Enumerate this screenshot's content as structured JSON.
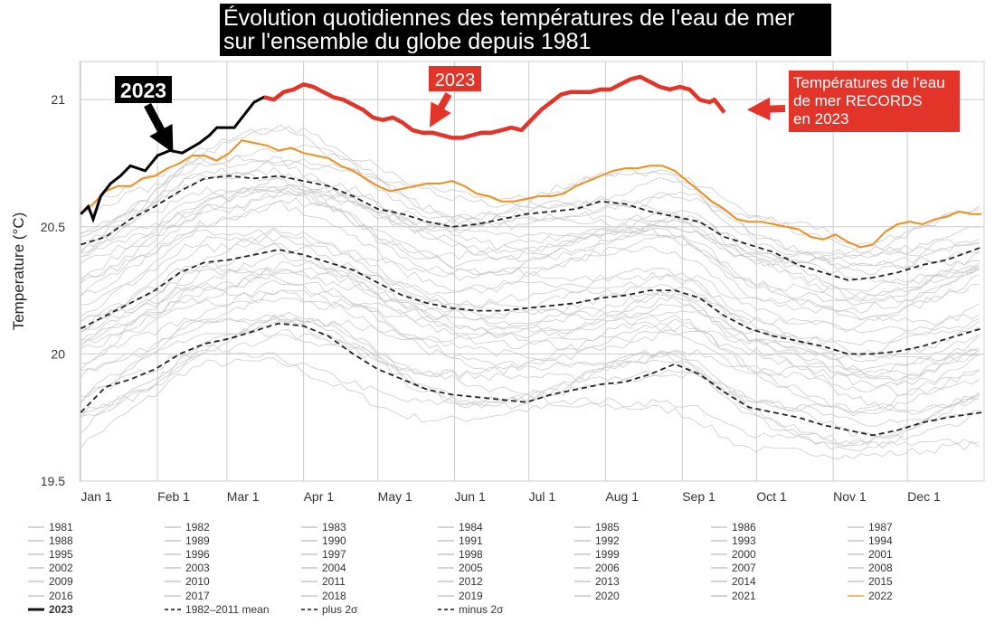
{
  "title": {
    "line1": "Évolution quotidiennes des températures de l'eau de mer",
    "line2": "sur l'ensemble du globe depuis 1981"
  },
  "annotations": {
    "left_2023": "2023",
    "mid_2023": "2023",
    "records": [
      "Températures de l'eau",
      "de mer RECORDS",
      "en 2023"
    ]
  },
  "colors": {
    "year_2023": "#000000",
    "year_2022": "#f28e1c",
    "highlight_red": "#e3342a",
    "history": "#c8c8c8",
    "stats": "#222222",
    "grid": "#cccccc"
  },
  "legend": {
    "years": [
      "1981",
      "1982",
      "1983",
      "1984",
      "1985",
      "1986",
      "1987",
      "1988",
      "1989",
      "1990",
      "1991",
      "1992",
      "1993",
      "1994",
      "1995",
      "1996",
      "1997",
      "1998",
      "1999",
      "2000",
      "2001",
      "2002",
      "2003",
      "2004",
      "2005",
      "2006",
      "2007",
      "2008",
      "2009",
      "2010",
      "2011",
      "2012",
      "2013",
      "2014",
      "2015",
      "2016",
      "2017",
      "2018",
      "2019",
      "2020",
      "2021",
      "2022"
    ],
    "extras": [
      {
        "label": "2023",
        "style": "solid-black"
      },
      {
        "label": "1982–2011 mean",
        "style": "dash"
      },
      {
        "label": "plus 2σ",
        "style": "dash"
      },
      {
        "label": "minus 2σ",
        "style": "dash"
      }
    ]
  },
  "chart_data": {
    "type": "line",
    "title": "Évolution quotidiennes des températures de l'eau de mer sur l'ensemble du globe depuis 1981",
    "xlabel": "",
    "ylabel": "Temperature (°C)",
    "ylim": [
      19.5,
      21.15
    ],
    "yticks": [
      19.5,
      20,
      20.5,
      21
    ],
    "ytick_labels": [
      "19.5",
      "20",
      "20.5",
      "21"
    ],
    "xlim": [
      -0.5,
      365
    ],
    "xticks": [
      0,
      31,
      59,
      90,
      120,
      151,
      181,
      212,
      243,
      273,
      304,
      334
    ],
    "xtick_labels": [
      "Jan 1",
      "Feb 1",
      "Mar 1",
      "Apr 1",
      "May 1",
      "Jun 1",
      "Jul 1",
      "Aug 1",
      "Sep 1",
      "Oct 1",
      "Nov 1",
      "Dec 1"
    ],
    "grid": true,
    "legend_position": "bottom",
    "series": [
      {
        "name": "2023",
        "color": "#000000",
        "x": [
          0,
          3,
          5,
          8,
          12,
          16,
          20,
          26,
          31,
          36,
          41,
          48,
          52,
          55,
          58,
          62,
          66,
          70,
          74,
          78,
          82,
          86,
          90,
          94,
          98,
          102,
          106,
          110,
          114,
          118,
          122,
          126,
          130,
          134,
          138,
          142,
          146,
          150,
          154,
          158,
          162,
          166,
          170,
          174,
          178,
          182,
          186,
          190,
          194,
          198,
          202,
          206,
          210,
          214,
          218,
          222,
          226,
          230,
          234,
          238,
          242,
          246,
          250,
          254,
          256,
          260
        ],
        "y": [
          20.55,
          20.58,
          20.53,
          20.62,
          20.67,
          20.7,
          20.74,
          20.72,
          20.78,
          20.8,
          20.79,
          20.83,
          20.86,
          20.89,
          20.89,
          20.89,
          20.94,
          20.99,
          21.01,
          21.0,
          21.03,
          21.04,
          21.06,
          21.05,
          21.03,
          21.01,
          21.0,
          20.98,
          20.96,
          20.93,
          20.92,
          20.93,
          20.91,
          20.88,
          20.87,
          20.87,
          20.86,
          20.85,
          20.85,
          20.86,
          20.87,
          20.87,
          20.88,
          20.89,
          20.88,
          20.92,
          20.96,
          20.99,
          21.02,
          21.03,
          21.03,
          21.03,
          21.04,
          21.04,
          21.06,
          21.08,
          21.09,
          21.07,
          21.05,
          21.04,
          21.05,
          21.04,
          21.0,
          20.99,
          21.0,
          20.95
        ]
      },
      {
        "name": "2022",
        "color": "#f28e1c",
        "x": [
          0,
          5,
          10,
          15,
          20,
          25,
          30,
          35,
          40,
          45,
          50,
          55,
          60,
          65,
          70,
          75,
          80,
          85,
          90,
          95,
          100,
          105,
          110,
          115,
          120,
          125,
          130,
          135,
          140,
          145,
          150,
          155,
          160,
          165,
          170,
          175,
          180,
          185,
          190,
          195,
          200,
          205,
          210,
          215,
          220,
          225,
          230,
          235,
          240,
          245,
          250,
          255,
          260,
          265,
          270,
          275,
          280,
          285,
          290,
          295,
          300,
          305,
          310,
          315,
          320,
          325,
          330,
          335,
          340,
          345,
          350,
          355,
          360,
          364
        ],
        "y": [
          20.55,
          20.59,
          20.64,
          20.66,
          20.66,
          20.69,
          20.7,
          20.73,
          20.75,
          20.78,
          20.78,
          20.76,
          20.79,
          20.84,
          20.83,
          20.82,
          20.8,
          20.81,
          20.79,
          20.78,
          20.77,
          20.74,
          20.72,
          20.69,
          20.66,
          20.64,
          20.65,
          20.66,
          20.67,
          20.67,
          20.68,
          20.66,
          20.63,
          20.62,
          20.6,
          20.6,
          20.61,
          20.62,
          20.62,
          20.63,
          20.66,
          20.68,
          20.7,
          20.72,
          20.73,
          20.73,
          20.74,
          20.74,
          20.72,
          20.68,
          20.64,
          20.6,
          20.57,
          20.53,
          20.52,
          20.52,
          20.51,
          20.5,
          20.49,
          20.46,
          20.45,
          20.47,
          20.44,
          20.42,
          20.43,
          20.48,
          20.51,
          20.52,
          20.51,
          20.53,
          20.54,
          20.56,
          20.55,
          20.55
        ]
      },
      {
        "name": "1982–2011 mean",
        "color": "#222222",
        "x": [
          0,
          10,
          20,
          30,
          40,
          50,
          60,
          70,
          80,
          90,
          100,
          110,
          120,
          130,
          140,
          150,
          160,
          170,
          180,
          190,
          200,
          210,
          220,
          230,
          240,
          250,
          260,
          270,
          280,
          290,
          300,
          310,
          320,
          330,
          340,
          350,
          364
        ],
        "y": [
          20.1,
          20.15,
          20.2,
          20.25,
          20.32,
          20.36,
          20.37,
          20.39,
          20.41,
          20.39,
          20.36,
          20.33,
          20.28,
          20.23,
          20.2,
          20.18,
          20.17,
          20.17,
          20.18,
          20.19,
          20.2,
          20.22,
          20.23,
          20.25,
          20.25,
          20.22,
          20.15,
          20.1,
          20.07,
          20.05,
          20.03,
          20.0,
          20.0,
          20.01,
          20.03,
          20.06,
          20.1
        ]
      },
      {
        "name": "plus 2σ",
        "color": "#222222",
        "x": [
          0,
          10,
          20,
          30,
          40,
          50,
          60,
          70,
          80,
          90,
          100,
          110,
          120,
          130,
          140,
          150,
          160,
          170,
          180,
          190,
          200,
          210,
          220,
          230,
          240,
          250,
          260,
          270,
          280,
          290,
          300,
          310,
          320,
          330,
          340,
          350,
          364
        ],
        "y": [
          20.43,
          20.46,
          20.53,
          20.58,
          20.64,
          20.69,
          20.7,
          20.69,
          20.7,
          20.68,
          20.66,
          20.62,
          20.57,
          20.55,
          20.52,
          20.5,
          20.51,
          20.53,
          20.55,
          20.56,
          20.57,
          20.6,
          20.59,
          20.56,
          20.54,
          20.52,
          20.46,
          20.43,
          20.4,
          20.35,
          20.32,
          20.29,
          20.3,
          20.32,
          20.35,
          20.37,
          20.42
        ]
      },
      {
        "name": "minus 2σ",
        "color": "#222222",
        "x": [
          0,
          10,
          20,
          30,
          40,
          50,
          60,
          70,
          80,
          90,
          100,
          110,
          120,
          130,
          140,
          150,
          160,
          170,
          180,
          190,
          200,
          210,
          220,
          230,
          240,
          250,
          260,
          270,
          280,
          290,
          300,
          310,
          320,
          330,
          340,
          350,
          364
        ],
        "y": [
          19.77,
          19.87,
          19.9,
          19.94,
          20.0,
          20.04,
          20.06,
          20.09,
          20.12,
          20.11,
          20.07,
          20.0,
          19.94,
          19.9,
          19.86,
          19.84,
          19.83,
          19.82,
          19.81,
          19.84,
          19.86,
          19.88,
          19.89,
          19.92,
          19.96,
          19.92,
          19.85,
          19.79,
          19.77,
          19.75,
          19.72,
          19.7,
          19.68,
          19.7,
          19.73,
          19.75,
          19.77
        ]
      }
    ]
  }
}
